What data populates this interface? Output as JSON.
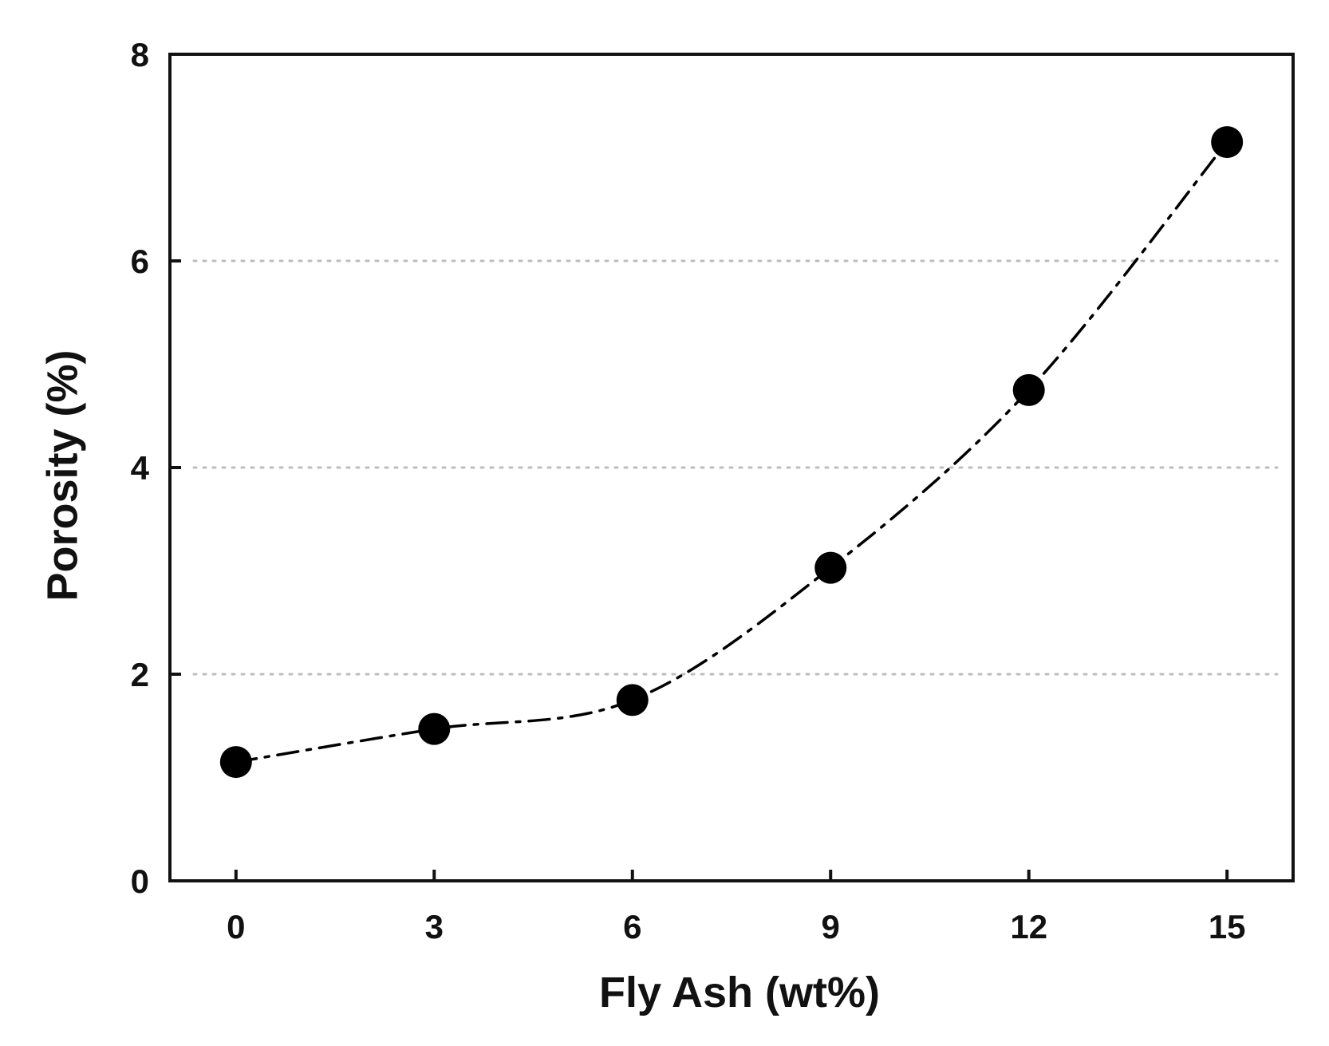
{
  "chart_data": {
    "type": "line",
    "title": "",
    "xlabel": "Fly Ash (wt%)",
    "ylabel": "Porosity (%)",
    "xlim": [
      -1,
      16
    ],
    "ylim": [
      0,
      8
    ],
    "x_ticks": [
      0,
      3,
      6,
      9,
      12,
      15
    ],
    "x_tick_labels": [
      "0",
      "3",
      "6",
      "9",
      "12",
      "15"
    ],
    "y_ticks": [
      0,
      2,
      4,
      6,
      8
    ],
    "y_tick_labels": [
      "0",
      "2",
      "4",
      "6",
      "8"
    ],
    "grid": "horizontal dotted at 2, 4, 6",
    "legend": "none",
    "series": [
      {
        "x": [
          0,
          3,
          6,
          9,
          12,
          15
        ],
        "y": [
          1.15,
          1.47,
          1.75,
          3.03,
          4.75,
          7.15
        ],
        "marker": "filled-circle",
        "line_style": "dash-dot",
        "color": "#000000"
      }
    ],
    "colors": {
      "axis": "#111111",
      "grid": "#bdbdbd",
      "marker": "#000000"
    }
  }
}
